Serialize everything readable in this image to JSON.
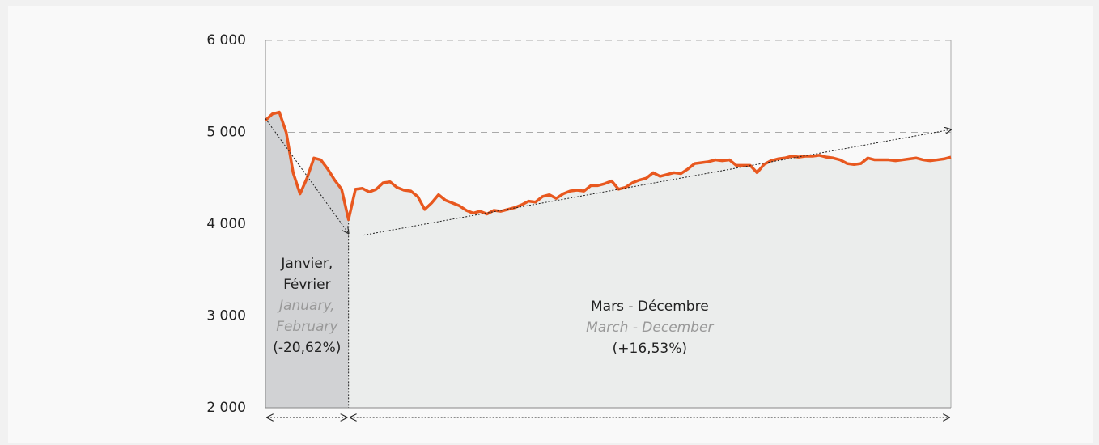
{
  "chart_data": {
    "type": "line",
    "series": [
      {
        "name": null,
        "color": "#e8581f",
        "values": [
          5130,
          5200,
          5220,
          5000,
          4560,
          4330,
          4500,
          4720,
          4700,
          4600,
          4480,
          4380,
          4050,
          4380,
          4390,
          4350,
          4380,
          4450,
          4460,
          4400,
          4370,
          4360,
          4300,
          4160,
          4230,
          4320,
          4260,
          4230,
          4200,
          4150,
          4120,
          4140,
          4110,
          4150,
          4140,
          4160,
          4180,
          4210,
          4250,
          4240,
          4300,
          4320,
          4280,
          4330,
          4360,
          4370,
          4360,
          4420,
          4420,
          4440,
          4470,
          4380,
          4400,
          4450,
          4480,
          4500,
          4560,
          4520,
          4540,
          4560,
          4550,
          4600,
          4660,
          4670,
          4680,
          4700,
          4690,
          4700,
          4640,
          4640,
          4640,
          4560,
          4650,
          4690,
          4710,
          4720,
          4740,
          4730,
          4740,
          4740,
          4750,
          4730,
          4720,
          4700,
          4660,
          4650,
          4660,
          4720,
          4700,
          4700,
          4700,
          4690,
          4700,
          4710,
          4720,
          4700,
          4690,
          4700,
          4710,
          4730
        ]
      }
    ],
    "ylim": [
      2000,
      6000
    ],
    "yticks": [
      {
        "value": 2000,
        "label": "2 000"
      },
      {
        "value": 3000,
        "label": "3 000"
      },
      {
        "value": 4000,
        "label": "4 000"
      },
      {
        "value": 5000,
        "label": "5 000"
      },
      {
        "value": 6000,
        "label": "6 000"
      }
    ],
    "grid": true,
    "trends": [
      {
        "values": [
          5150,
          3900
        ]
      },
      {
        "values": [
          3880,
          5030
        ]
      }
    ],
    "periods": [
      {
        "label": [
          "Janvier,",
          "Février"
        ],
        "label_en": [
          "January,",
          "February"
        ],
        "change": "(-20,62%)",
        "color": "#d1d2d4"
      },
      {
        "label": [
          "Mars - Décembre"
        ],
        "label_en": [
          "March - December"
        ],
        "change": "(+16,53%)",
        "color": "#ebedec"
      }
    ]
  }
}
